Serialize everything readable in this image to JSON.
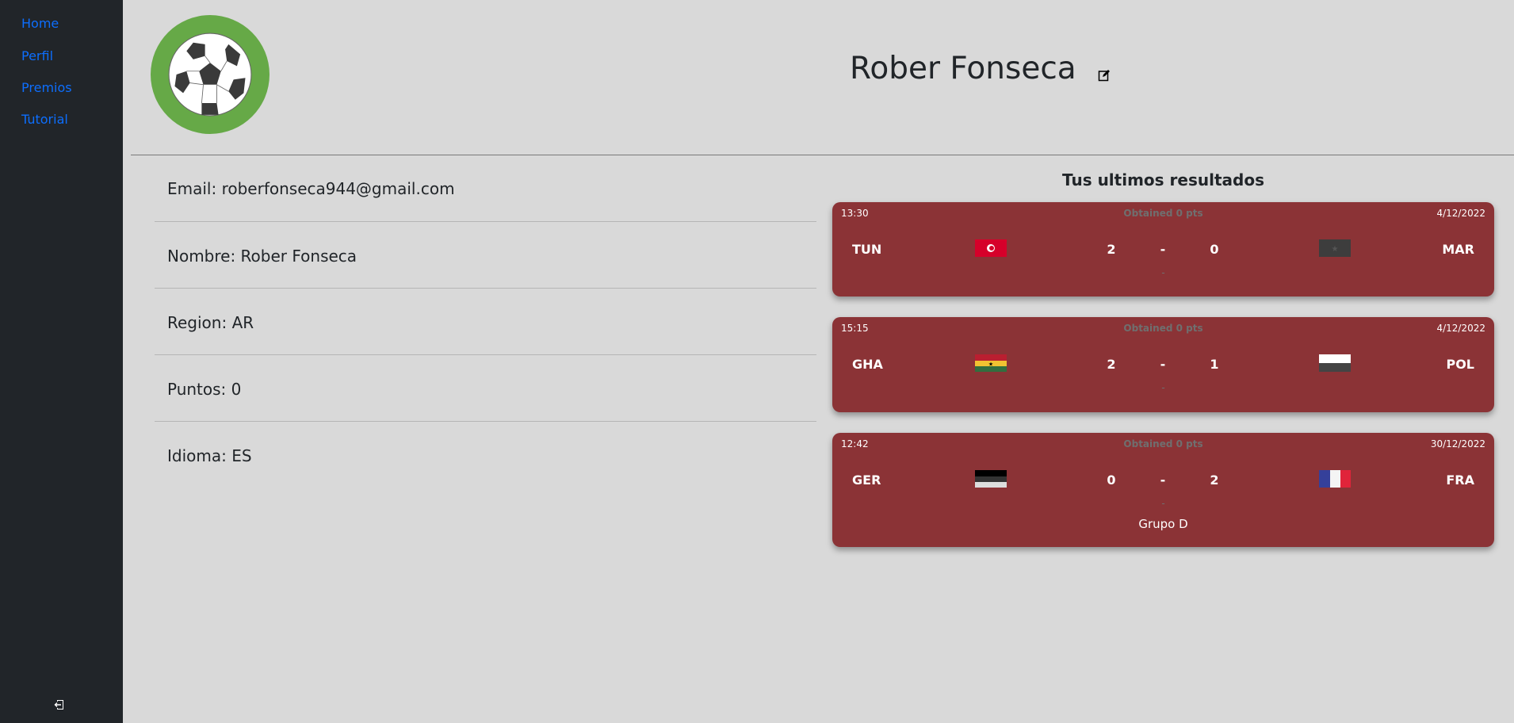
{
  "sidebar": {
    "items": [
      {
        "label": "Home"
      },
      {
        "label": "Perfil"
      },
      {
        "label": "Premios"
      },
      {
        "label": "Tutorial"
      }
    ],
    "logout_icon": "logout-icon"
  },
  "profile": {
    "name": "Rober Fonseca",
    "edit_icon": "edit-icon",
    "fields": [
      "Email: roberfonseca944@gmail.com",
      "Nombre: Rober Fonseca",
      "Region: AR",
      "Puntos: 0",
      "Idioma: ES"
    ]
  },
  "results": {
    "title": "Tus ultimos resultados",
    "matches": [
      {
        "time": "13:30",
        "points": "Obtained 0 pts",
        "date": "4/12/2022",
        "home": "TUN",
        "home_score": "2",
        "sep": "-",
        "away_score": "0",
        "away": "MAR",
        "sub": "-",
        "group": ""
      },
      {
        "time": "15:15",
        "points": "Obtained 0 pts",
        "date": "4/12/2022",
        "home": "GHA",
        "home_score": "2",
        "sep": "-",
        "away_score": "1",
        "away": "POL",
        "sub": "-",
        "group": ""
      },
      {
        "time": "12:42",
        "points": "Obtained 0 pts",
        "date": "30/12/2022",
        "home": "GER",
        "home_score": "0",
        "sep": "-",
        "away_score": "2",
        "away": "FRA",
        "sub": "-",
        "group": "Grupo D"
      }
    ]
  },
  "colors": {
    "sidebar": "#212529",
    "link": "#0d6efd",
    "card": "#8b3336",
    "logo_ring": "#66a947",
    "background": "#d9d9d9"
  }
}
